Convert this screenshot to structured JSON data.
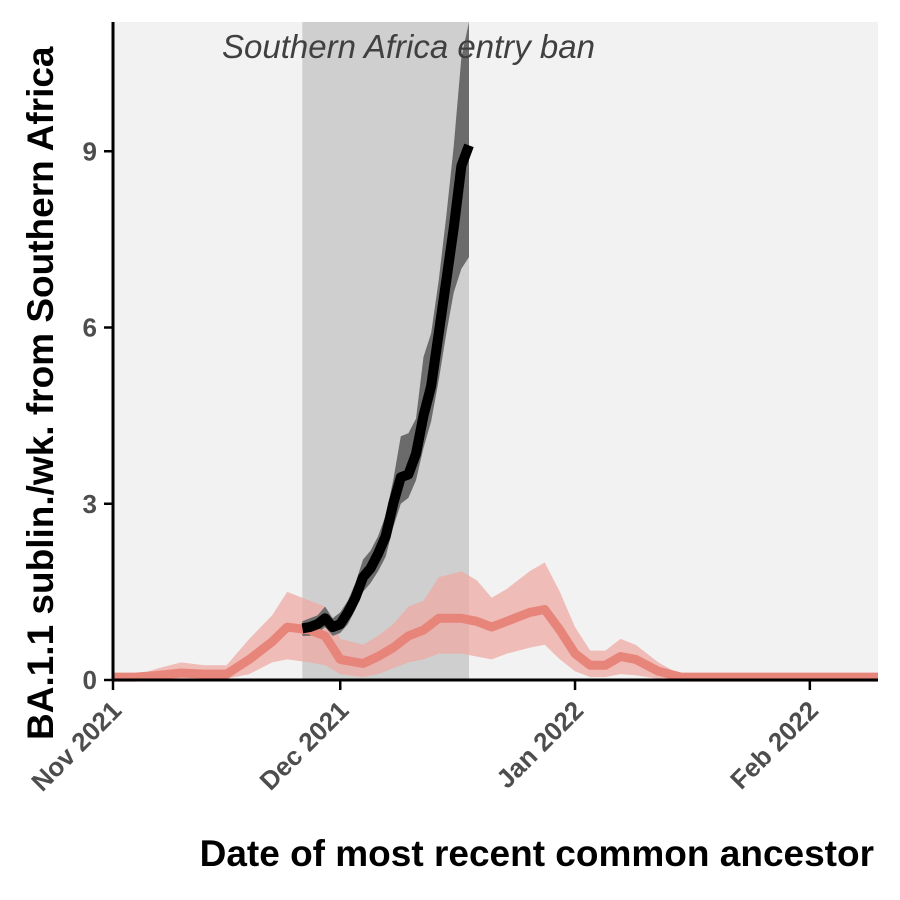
{
  "chart_data": {
    "type": "line",
    "title": "",
    "xlabel": "Date of most recent common ancestor",
    "ylabel": "BA.1.1 sublin./wk. from Southern Africa",
    "xlim": [
      "2021-11-01",
      "2022-02-10"
    ],
    "ylim": [
      0,
      11.2
    ],
    "x_ticks": [
      {
        "date": "2021-11-01",
        "label": "Nov 2021"
      },
      {
        "date": "2021-12-01",
        "label": "Dec 2021"
      },
      {
        "date": "2022-01-01",
        "label": "Jan 2022"
      },
      {
        "date": "2022-02-01",
        "label": "Feb 2022"
      }
    ],
    "y_ticks": [
      {
        "value": 0,
        "label": "0"
      },
      {
        "value": 3,
        "label": "3"
      },
      {
        "value": 6,
        "label": "6"
      },
      {
        "value": 9,
        "label": "9"
      }
    ],
    "grid": false,
    "legend": "none",
    "annotation": {
      "text": "Southern Africa entry ban",
      "start": "2021-11-26",
      "end": "2021-12-18",
      "color": "#cfcfcf"
    },
    "panel_background": "#f2f2f2",
    "series": [
      {
        "color": "#e8857a",
        "band_color": "#eeaaa3",
        "points": [
          {
            "x": "2021-11-01",
            "y": 0.05,
            "lo": 0.0,
            "hi": 0.05
          },
          {
            "x": "2021-11-04",
            "y": 0.05,
            "lo": 0.0,
            "hi": 0.08
          },
          {
            "x": "2021-11-07",
            "y": 0.08,
            "lo": 0.0,
            "hi": 0.2
          },
          {
            "x": "2021-11-10",
            "y": 0.12,
            "lo": 0.02,
            "hi": 0.3
          },
          {
            "x": "2021-11-13",
            "y": 0.1,
            "lo": 0.02,
            "hi": 0.25
          },
          {
            "x": "2021-11-16",
            "y": 0.1,
            "lo": 0.02,
            "hi": 0.25
          },
          {
            "x": "2021-11-19",
            "y": 0.35,
            "lo": 0.1,
            "hi": 0.7
          },
          {
            "x": "2021-11-22",
            "y": 0.65,
            "lo": 0.3,
            "hi": 1.1
          },
          {
            "x": "2021-11-24",
            "y": 0.9,
            "lo": 0.35,
            "hi": 1.5
          },
          {
            "x": "2021-11-27",
            "y": 0.85,
            "lo": 0.3,
            "hi": 1.35
          },
          {
            "x": "2021-11-29",
            "y": 0.75,
            "lo": 0.25,
            "hi": 1.25
          },
          {
            "x": "2021-12-01",
            "y": 0.35,
            "lo": 0.1,
            "hi": 0.7
          },
          {
            "x": "2021-12-04",
            "y": 0.28,
            "lo": 0.05,
            "hi": 0.6
          },
          {
            "x": "2021-12-06",
            "y": 0.4,
            "lo": 0.1,
            "hi": 0.75
          },
          {
            "x": "2021-12-08",
            "y": 0.55,
            "lo": 0.2,
            "hi": 0.95
          },
          {
            "x": "2021-12-10",
            "y": 0.75,
            "lo": 0.3,
            "hi": 1.25
          },
          {
            "x": "2021-12-12",
            "y": 0.85,
            "lo": 0.35,
            "hi": 1.35
          },
          {
            "x": "2021-12-14",
            "y": 1.05,
            "lo": 0.45,
            "hi": 1.75
          },
          {
            "x": "2021-12-17",
            "y": 1.05,
            "lo": 0.45,
            "hi": 1.85
          },
          {
            "x": "2021-12-19",
            "y": 1.0,
            "lo": 0.4,
            "hi": 1.7
          },
          {
            "x": "2021-12-21",
            "y": 0.9,
            "lo": 0.35,
            "hi": 1.4
          },
          {
            "x": "2021-12-23",
            "y": 1.0,
            "lo": 0.45,
            "hi": 1.55
          },
          {
            "x": "2021-12-26",
            "y": 1.15,
            "lo": 0.55,
            "hi": 1.85
          },
          {
            "x": "2021-12-28",
            "y": 1.2,
            "lo": 0.6,
            "hi": 2.0
          },
          {
            "x": "2021-12-30",
            "y": 0.85,
            "lo": 0.35,
            "hi": 1.5
          },
          {
            "x": "2022-01-01",
            "y": 0.45,
            "lo": 0.15,
            "hi": 0.9
          },
          {
            "x": "2022-01-03",
            "y": 0.25,
            "lo": 0.05,
            "hi": 0.5
          },
          {
            "x": "2022-01-05",
            "y": 0.25,
            "lo": 0.05,
            "hi": 0.5
          },
          {
            "x": "2022-01-07",
            "y": 0.4,
            "lo": 0.1,
            "hi": 0.7
          },
          {
            "x": "2022-01-09",
            "y": 0.35,
            "lo": 0.08,
            "hi": 0.6
          },
          {
            "x": "2022-01-12",
            "y": 0.15,
            "lo": 0.02,
            "hi": 0.3
          },
          {
            "x": "2022-01-15",
            "y": 0.05,
            "lo": 0.0,
            "hi": 0.08
          },
          {
            "x": "2022-01-20",
            "y": 0.05,
            "lo": 0.0,
            "hi": 0.05
          },
          {
            "x": "2022-02-10",
            "y": 0.05,
            "lo": 0.0,
            "hi": 0.05
          }
        ]
      },
      {
        "color": "#000000",
        "band_color": "#6b6b6b",
        "points": [
          {
            "x": "2021-11-26",
            "y": 0.88,
            "lo": 0.75,
            "hi": 1.0
          },
          {
            "x": "2021-11-27",
            "y": 0.9,
            "lo": 0.75,
            "hi": 1.05
          },
          {
            "x": "2021-11-28",
            "y": 0.95,
            "lo": 0.8,
            "hi": 1.1
          },
          {
            "x": "2021-11-29",
            "y": 1.05,
            "lo": 0.9,
            "hi": 1.25
          },
          {
            "x": "2021-11-30",
            "y": 0.9,
            "lo": 0.75,
            "hi": 1.05
          },
          {
            "x": "2021-12-01",
            "y": 0.95,
            "lo": 0.8,
            "hi": 1.15
          },
          {
            "x": "2021-12-02",
            "y": 1.15,
            "lo": 0.95,
            "hi": 1.35
          },
          {
            "x": "2021-12-03",
            "y": 1.4,
            "lo": 1.2,
            "hi": 1.65
          },
          {
            "x": "2021-12-04",
            "y": 1.75,
            "lo": 1.5,
            "hi": 2.05
          },
          {
            "x": "2021-12-05",
            "y": 1.9,
            "lo": 1.65,
            "hi": 2.2
          },
          {
            "x": "2021-12-06",
            "y": 2.15,
            "lo": 1.85,
            "hi": 2.45
          },
          {
            "x": "2021-12-07",
            "y": 2.45,
            "lo": 2.1,
            "hi": 2.8
          },
          {
            "x": "2021-12-08",
            "y": 3.0,
            "lo": 2.6,
            "hi": 3.4
          },
          {
            "x": "2021-12-09",
            "y": 3.45,
            "lo": 3.0,
            "hi": 4.15
          },
          {
            "x": "2021-12-10",
            "y": 3.5,
            "lo": 3.1,
            "hi": 4.2
          },
          {
            "x": "2021-12-11",
            "y": 3.85,
            "lo": 3.4,
            "hi": 4.45
          },
          {
            "x": "2021-12-12",
            "y": 4.5,
            "lo": 3.95,
            "hi": 5.5
          },
          {
            "x": "2021-12-13",
            "y": 5.0,
            "lo": 4.4,
            "hi": 5.9
          },
          {
            "x": "2021-12-14",
            "y": 5.9,
            "lo": 5.1,
            "hi": 6.8
          },
          {
            "x": "2021-12-15",
            "y": 6.8,
            "lo": 5.9,
            "hi": 7.9
          },
          {
            "x": "2021-12-16",
            "y": 7.7,
            "lo": 6.6,
            "hi": 9.1
          },
          {
            "x": "2021-12-17",
            "y": 8.75,
            "lo": 7.0,
            "hi": 10.6
          },
          {
            "x": "2021-12-18",
            "y": 9.1,
            "lo": 7.2,
            "hi": 11.2
          }
        ]
      }
    ]
  }
}
